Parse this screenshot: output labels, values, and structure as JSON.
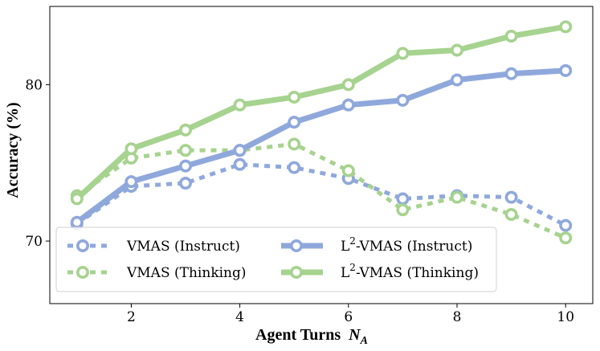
{
  "chart_data": {
    "type": "line",
    "xlabel": "Agent Turns",
    "xlabel_symbol": "N",
    "xlabel_subscript": "A",
    "ylabel": "Accuracy (%)",
    "xlim": [
      0.5,
      10.5
    ],
    "ylim": [
      66,
      85
    ],
    "xticks": [
      2,
      4,
      6,
      8,
      10
    ],
    "yticks": [
      70,
      80
    ],
    "grid": false,
    "legend_position": "lower-left",
    "series": [
      {
        "name": "VMAS (Instruct)",
        "style": "dotted",
        "color": "#8fa8dc",
        "x": [
          1,
          2,
          3,
          4,
          5,
          6,
          7,
          8,
          9,
          10
        ],
        "y": [
          71.1,
          73.5,
          73.7,
          74.9,
          74.7,
          74.0,
          72.7,
          72.9,
          72.8,
          71.0
        ]
      },
      {
        "name": "VMAS (Thinking)",
        "style": "dotted",
        "color": "#a6d38f",
        "x": [
          1,
          2,
          3,
          4,
          5,
          6,
          7,
          8,
          9,
          10
        ],
        "y": [
          72.9,
          75.3,
          75.8,
          75.8,
          76.2,
          74.5,
          72.0,
          72.8,
          71.7,
          70.2
        ]
      },
      {
        "name": "L2-VMAS (Instruct)",
        "name_base": "L",
        "name_sup": "2",
        "name_rest": "-VMAS (Instruct)",
        "style": "solid",
        "color": "#8fa8dc",
        "x": [
          1,
          2,
          3,
          4,
          5,
          6,
          7,
          8,
          9,
          10
        ],
        "y": [
          71.2,
          73.8,
          74.8,
          75.8,
          77.6,
          78.7,
          79.0,
          80.3,
          80.7,
          80.9
        ]
      },
      {
        "name": "L2-VMAS (Thinking)",
        "name_base": "L",
        "name_sup": "2",
        "name_rest": "-VMAS (Thinking)",
        "style": "solid",
        "color": "#a6d38f",
        "x": [
          1,
          2,
          3,
          4,
          5,
          6,
          7,
          8,
          9,
          10
        ],
        "y": [
          72.7,
          75.9,
          77.1,
          78.7,
          79.2,
          80.0,
          82.0,
          82.2,
          83.1,
          83.7
        ]
      }
    ]
  }
}
